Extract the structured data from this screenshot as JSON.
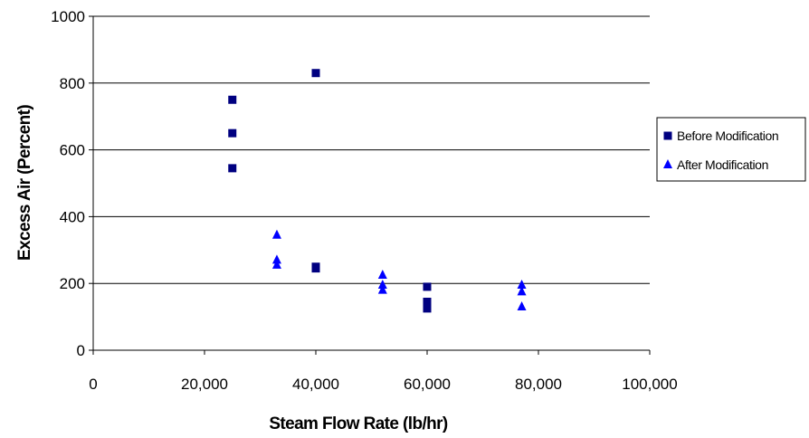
{
  "chart_data": {
    "type": "scatter",
    "xlabel": "Steam Flow Rate (lb/hr)",
    "ylabel": "Excess Air (Percent)",
    "xlim": [
      0,
      100000
    ],
    "ylim": [
      0,
      1000
    ],
    "x_ticks": [
      0,
      20000,
      40000,
      60000,
      80000,
      100000
    ],
    "x_tick_labels": [
      "0",
      "20,000",
      "40,000",
      "60,000",
      "80,000",
      "100,000"
    ],
    "y_ticks": [
      0,
      200,
      400,
      600,
      800,
      1000
    ],
    "y_tick_labels": [
      "0",
      "200",
      "400",
      "600",
      "800",
      "1000"
    ],
    "grid": "horizontal",
    "legend_position": "right",
    "series": [
      {
        "name": "Before Modification",
        "marker": "square",
        "color": "#000080",
        "points": [
          {
            "x": 25000,
            "y": 750
          },
          {
            "x": 25000,
            "y": 650
          },
          {
            "x": 25000,
            "y": 545
          },
          {
            "x": 40000,
            "y": 830
          },
          {
            "x": 40000,
            "y": 250
          },
          {
            "x": 40000,
            "y": 245
          },
          {
            "x": 60000,
            "y": 190
          },
          {
            "x": 60000,
            "y": 145
          },
          {
            "x": 60000,
            "y": 135
          },
          {
            "x": 60000,
            "y": 125
          }
        ]
      },
      {
        "name": "After Modification",
        "marker": "triangle",
        "color": "#0000ff",
        "points": [
          {
            "x": 33000,
            "y": 345
          },
          {
            "x": 33000,
            "y": 270
          },
          {
            "x": 33000,
            "y": 255
          },
          {
            "x": 52000,
            "y": 225
          },
          {
            "x": 52000,
            "y": 195
          },
          {
            "x": 52000,
            "y": 180
          },
          {
            "x": 77000,
            "y": 195
          },
          {
            "x": 77000,
            "y": 175
          },
          {
            "x": 77000,
            "y": 130
          }
        ]
      }
    ]
  }
}
